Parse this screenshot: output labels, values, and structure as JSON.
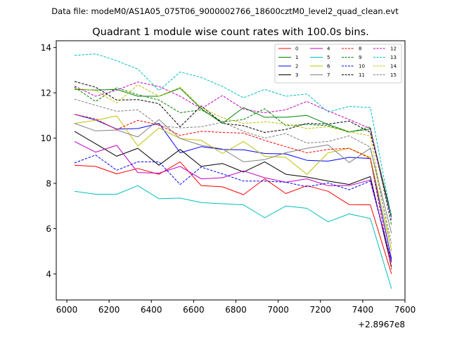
{
  "chart_data": {
    "type": "line",
    "suptitle": "Data file: modeM0/AS1A05_075T06_9000002766_18600cztM0_level2_quad_clean.evt",
    "title": "Quadrant 1 module wise count rates with 100.0s bins.",
    "xlabel": "",
    "ylabel": "",
    "x_offset_label": "+2.8967e8",
    "xlim": [
      5950,
      7600
    ],
    "ylim": [
      2.85,
      14.3
    ],
    "xticks": [
      6000,
      6200,
      6400,
      6600,
      6800,
      7000,
      7200,
      7400,
      7600
    ],
    "yticks": [
      4,
      6,
      8,
      10,
      12,
      14
    ],
    "x": [
      6036,
      6136,
      6236,
      6336,
      6436,
      6536,
      6636,
      6736,
      6836,
      6936,
      7036,
      7136,
      7236,
      7336,
      7436,
      7536
    ],
    "series": [
      {
        "name": "0",
        "color": "#ff0000",
        "dash": "solid",
        "values": [
          8.8,
          8.75,
          8.42,
          8.66,
          8.4,
          8.95,
          7.9,
          7.85,
          7.5,
          8.2,
          7.55,
          7.9,
          7.65,
          7.06,
          7.05,
          4.0
        ]
      },
      {
        "name": "1",
        "color": "#008000",
        "dash": "solid",
        "values": [
          12.15,
          12.12,
          12.15,
          11.85,
          11.85,
          12.2,
          11.3,
          10.65,
          11.35,
          10.92,
          10.92,
          11.0,
          10.6,
          10.28,
          10.4,
          6.55
        ]
      },
      {
        "name": "2",
        "color": "#0000ff",
        "dash": "solid",
        "values": [
          11.05,
          10.8,
          10.4,
          10.42,
          10.65,
          9.35,
          9.62,
          9.5,
          9.48,
          9.32,
          9.3,
          9.02,
          8.98,
          9.15,
          9.1,
          4.65
        ]
      },
      {
        "name": "3",
        "color": "#000000",
        "dash": "solid",
        "values": [
          10.3,
          9.75,
          9.2,
          9.55,
          8.8,
          9.5,
          8.75,
          8.88,
          8.5,
          8.95,
          8.4,
          8.28,
          8.1,
          7.95,
          8.3,
          4.3
        ]
      },
      {
        "name": "4",
        "color": "#c000c0",
        "dash": "solid",
        "values": [
          9.85,
          9.38,
          9.68,
          8.48,
          8.45,
          8.75,
          8.2,
          8.25,
          8.55,
          8.25,
          8.05,
          8.2,
          7.9,
          7.9,
          8.15,
          4.5
        ]
      },
      {
        "name": "5",
        "color": "#00bfbf",
        "dash": "solid",
        "values": [
          7.65,
          7.52,
          7.52,
          7.9,
          7.32,
          7.35,
          7.15,
          7.1,
          7.05,
          6.48,
          7.0,
          6.9,
          6.3,
          6.65,
          6.45,
          3.35
        ]
      },
      {
        "name": "6",
        "color": "#bfbf00",
        "dash": "solid",
        "values": [
          10.65,
          10.78,
          10.98,
          9.65,
          10.45,
          9.98,
          9.9,
          9.32,
          9.85,
          9.2,
          9.15,
          8.4,
          9.35,
          9.55,
          9.15,
          5.05
        ]
      },
      {
        "name": "7",
        "color": "#808080",
        "dash": "solid",
        "values": [
          10.65,
          10.32,
          10.36,
          10.05,
          10.82,
          9.98,
          9.68,
          9.52,
          8.95,
          9.05,
          9.35,
          9.55,
          9.7,
          8.92,
          9.55,
          5.8
        ]
      },
      {
        "name": "8",
        "color": "#ff0000",
        "dash": "dashed",
        "values": [
          11.05,
          10.85,
          10.38,
          10.78,
          10.58,
          10.12,
          10.3,
          10.25,
          10.22,
          9.9,
          9.62,
          9.35,
          9.5,
          9.55,
          9.1,
          4.2
        ]
      },
      {
        "name": "9",
        "color": "#008000",
        "dash": "dashed",
        "values": [
          12.25,
          11.62,
          12.22,
          11.92,
          11.68,
          11.12,
          11.25,
          10.72,
          10.82,
          11.3,
          10.55,
          10.6,
          10.55,
          10.25,
          10.5,
          6.15
        ]
      },
      {
        "name": "10",
        "color": "#0000ff",
        "dash": "dashed",
        "values": [
          8.9,
          9.25,
          8.58,
          8.95,
          8.95,
          7.95,
          8.72,
          8.42,
          8.1,
          8.1,
          8.05,
          7.85,
          8.02,
          7.72,
          8.1,
          4.55
        ]
      },
      {
        "name": "11",
        "color": "#000000",
        "dash": "dashed",
        "values": [
          12.5,
          12.25,
          11.68,
          11.7,
          11.52,
          10.5,
          11.42,
          10.65,
          10.55,
          10.25,
          10.38,
          10.65,
          10.62,
          10.75,
          10.25,
          6.5
        ]
      },
      {
        "name": "12",
        "color": "#c000c0",
        "dash": "dashed",
        "values": [
          12.3,
          11.85,
          12.12,
          12.48,
          12.28,
          11.85,
          11.3,
          11.88,
          11.28,
          11.12,
          11.25,
          11.62,
          11.2,
          10.82,
          10.42,
          6.35
        ]
      },
      {
        "name": "13",
        "color": "#00bfbf",
        "dash": "dashed",
        "values": [
          13.65,
          13.72,
          13.42,
          13.05,
          12.1,
          12.92,
          12.68,
          12.28,
          11.78,
          12.15,
          11.85,
          11.95,
          11.15,
          11.4,
          11.35,
          6.5
        ]
      },
      {
        "name": "14",
        "color": "#bfbf00",
        "dash": "dashed",
        "values": [
          12.2,
          12.1,
          11.55,
          12.35,
          11.85,
          12.25,
          11.35,
          10.9,
          10.65,
          10.72,
          10.62,
          10.42,
          10.5,
          10.28,
          10.1,
          5.0
        ]
      },
      {
        "name": "15",
        "color": "#808080",
        "dash": "dashed",
        "values": [
          11.72,
          11.45,
          11.18,
          11.25,
          10.55,
          10.45,
          10.5,
          10.7,
          10.3,
          10.0,
          10.2,
          9.78,
          9.85,
          10.1,
          9.6,
          5.35
        ]
      }
    ]
  }
}
